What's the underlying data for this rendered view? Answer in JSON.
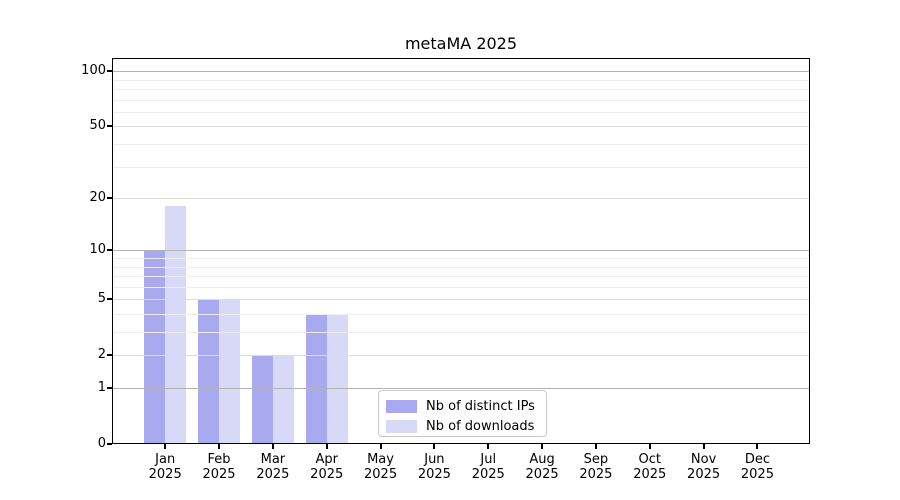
{
  "chart_data": {
    "type": "bar",
    "title": "metaMA 2025",
    "categories": [
      "Jan",
      "Feb",
      "Mar",
      "Apr",
      "May",
      "Jun",
      "Jul",
      "Aug",
      "Sep",
      "Oct",
      "Nov",
      "Dec"
    ],
    "category_year": "2025",
    "series": [
      {
        "name": "Nb of distinct IPs",
        "color": "#a9a9f0",
        "values": [
          10,
          5,
          2,
          4,
          0,
          0,
          0,
          0,
          0,
          0,
          0,
          0
        ]
      },
      {
        "name": "Nb of downloads",
        "color": "#d8d8f7",
        "values": [
          18,
          5,
          2,
          4,
          0,
          0,
          0,
          0,
          0,
          0,
          0,
          0
        ]
      }
    ],
    "xlabel": "",
    "ylabel": "",
    "y_scale": "log10(1+y)",
    "ylim": [
      0,
      118
    ],
    "y_major_ticks": [
      0,
      1,
      2,
      5,
      10,
      20,
      50,
      100
    ],
    "y_minor_ticks": [
      3,
      4,
      6,
      7,
      8,
      9,
      30,
      40,
      60,
      70,
      80,
      90
    ],
    "grid": "both",
    "legend_position": "lower-center"
  },
  "colors": {
    "background": "#ffffff",
    "spine": "#000000",
    "decade_gridline": "#b3b3b3",
    "major_gridline": "#dcdcdc",
    "minor_gridline": "#ededed",
    "legend_border": "#c9c9c9"
  }
}
